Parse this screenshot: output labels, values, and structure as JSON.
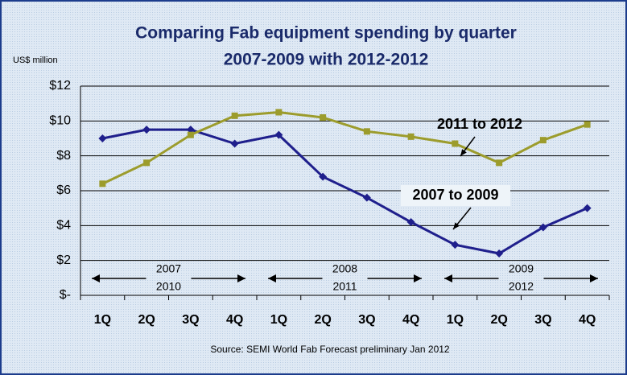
{
  "chart_data": {
    "type": "line",
    "title": "Comparing Fab equipment spending by quarter",
    "subtitle": "2007-2009 with 2012-2012",
    "y_label": "US$ million",
    "source": "Source: SEMI World Fab Forecast preliminary Jan 2012",
    "categories": [
      "1Q",
      "2Q",
      "3Q",
      "4Q",
      "1Q",
      "2Q",
      "3Q",
      "4Q",
      "1Q",
      "2Q",
      "3Q",
      "4Q"
    ],
    "series": [
      {
        "name": "2007 to 2009",
        "color": "#1f1f8c",
        "marker": "diamond",
        "values": [
          9.0,
          9.5,
          9.5,
          8.7,
          9.2,
          6.8,
          5.6,
          4.2,
          2.9,
          2.4,
          3.9,
          5.0
        ]
      },
      {
        "name": "2011 to 2012",
        "color": "#9c9c2c",
        "marker": "square",
        "values": [
          6.4,
          7.6,
          9.2,
          10.3,
          10.5,
          10.2,
          9.4,
          9.1,
          8.7,
          7.6,
          8.9,
          9.8
        ]
      }
    ],
    "year_groups": [
      {
        "top": "2007",
        "bottom": "2010"
      },
      {
        "top": "2008",
        "bottom": "2011"
      },
      {
        "top": "2009",
        "bottom": "2012"
      }
    ],
    "ylim": [
      0,
      12
    ],
    "yticks": [
      {
        "value": 0,
        "label": "$-"
      },
      {
        "value": 2,
        "label": "$2"
      },
      {
        "value": 4,
        "label": "$4"
      },
      {
        "value": 6,
        "label": "$6"
      },
      {
        "value": 8,
        "label": "$8"
      },
      {
        "value": 10,
        "label": "$10"
      },
      {
        "value": 12,
        "label": "$12"
      }
    ],
    "grid": true
  }
}
